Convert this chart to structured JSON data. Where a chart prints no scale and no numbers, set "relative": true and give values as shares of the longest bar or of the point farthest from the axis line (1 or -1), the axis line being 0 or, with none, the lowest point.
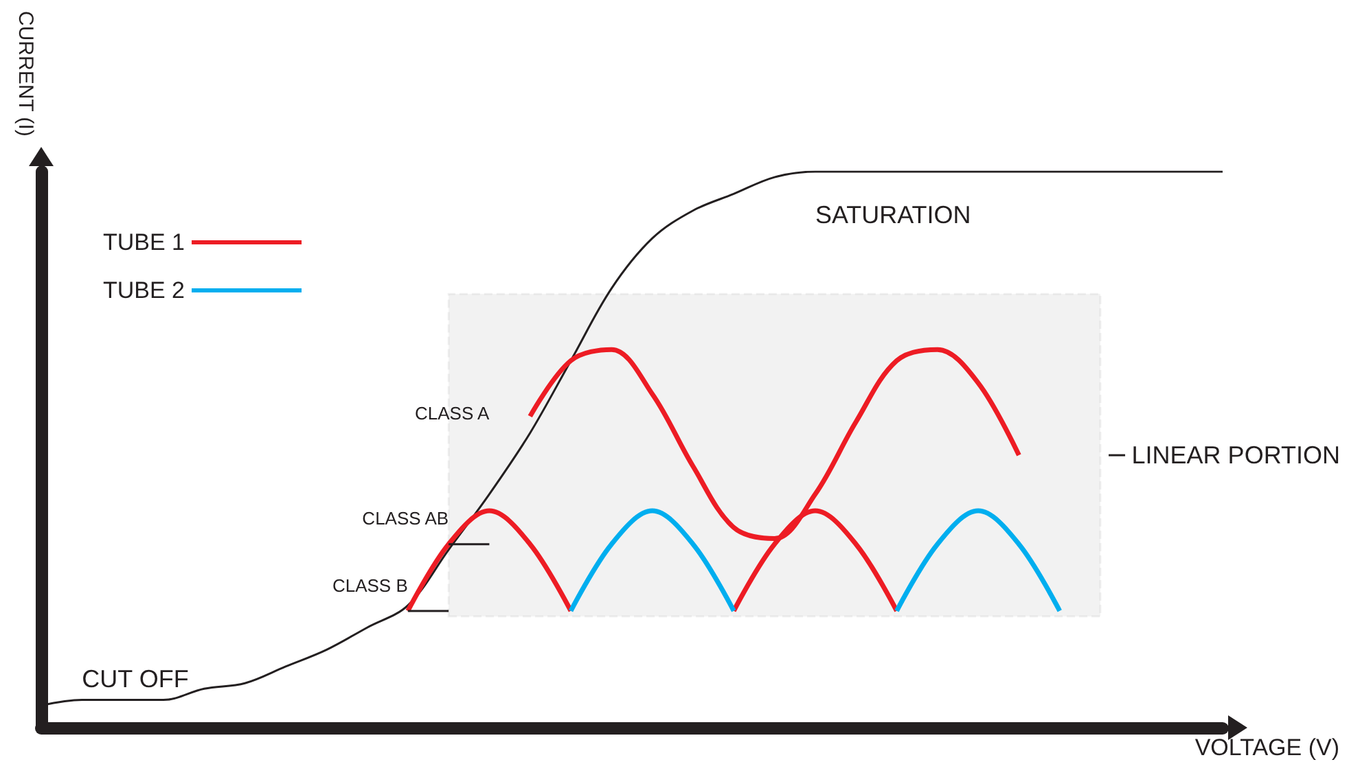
{
  "chart_data": {
    "type": "line",
    "relative": true,
    "xlabel": "VOLTAGE (V)",
    "ylabel": "CURRENT (I)",
    "legend": "top left",
    "marker": "none",
    "categories": [
      null,
      null,
      null,
      null,
      null,
      null,
      null,
      null,
      null,
      null,
      null,
      null,
      null,
      null,
      null,
      null,
      null,
      null,
      null,
      null,
      null,
      null,
      null,
      null,
      null,
      null,
      null,
      null,
      null,
      null
    ],
    "series": [
      {
        "color": "#231f20",
        "values": [
          0.04,
          0.05,
          0.05,
          0.05,
          0.07,
          0.08,
          0.11,
          0.14,
          0.18,
          0.22,
          0.32,
          0.42,
          0.53,
          0.66,
          0.79,
          0.88,
          0.93,
          0.96,
          0.99,
          1,
          1,
          1,
          1,
          1,
          1,
          1,
          1,
          1,
          1,
          1
        ]
      },
      {
        "name": "TUBE 1",
        "color": "#ed1c24",
        "values": [
          null,
          null,
          null,
          null,
          null,
          null,
          null,
          null,
          null,
          0.21,
          0.33,
          0.39,
          0.33,
          0.21,
          null,
          null,
          null,
          0.21,
          0.33,
          0.39,
          0.33,
          0.21,
          null,
          null,
          null,
          null,
          null,
          null,
          null,
          null
        ]
      },
      {
        "name": "TUBE 2",
        "color": "#00aeef",
        "values": [
          null,
          null,
          null,
          null,
          null,
          null,
          null,
          null,
          null,
          null,
          null,
          null,
          null,
          0.21,
          0.33,
          0.39,
          0.33,
          0.21,
          null,
          null,
          null,
          0.21,
          0.33,
          0.39,
          0.33,
          0.21,
          null,
          null,
          null,
          null
        ]
      },
      {
        "color": "#ed1c24",
        "values": [
          null,
          null,
          null,
          null,
          null,
          null,
          null,
          null,
          null,
          null,
          null,
          null,
          0.56,
          0.66,
          0.68,
          0.6,
          0.47,
          0.36,
          0.34,
          0.42,
          0.55,
          0.66,
          0.68,
          0.62,
          0.49,
          null,
          null,
          null,
          null,
          null
        ]
      }
    ],
    "bands": [
      {
        "axis": "y",
        "from": 0.2,
        "to": 0.78,
        "label": "LINEAR PORTION",
        "color": "#231f20"
      }
    ],
    "annotations": [
      "CLASS A",
      "CLASS AB",
      "CLASS B",
      "CUT OFF",
      "SATURATION"
    ]
  }
}
